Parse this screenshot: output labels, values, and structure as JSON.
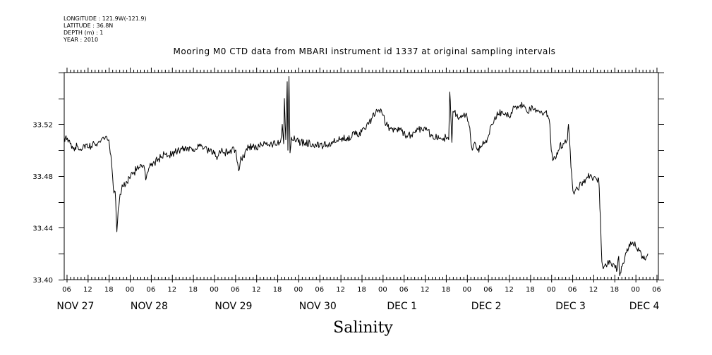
{
  "header": {
    "lines": [
      "LONGITUDE : 121.9W(-121.9)",
      "LATITUDE : 36.8N",
      "DEPTH (m) : 1",
      "YEAR : 2010"
    ]
  },
  "chart_data": {
    "type": "line",
    "title": "Mooring M0 CTD data from MBARI instrument id 1337 at original sampling intervals",
    "xlabel": "Salinity",
    "ylabel": "",
    "x_unit": "hours since Nov 27 00:00 (2010)",
    "xlim": [
      5.3,
      174.5
    ],
    "ylim": [
      33.4,
      33.56
    ],
    "yticks": [
      33.4,
      33.44,
      33.48,
      33.52
    ],
    "ytick_labels": [
      "33.40",
      "33.44",
      "33.48",
      "33.52"
    ],
    "hour_ticks": [
      {
        "h": 6,
        "label": "06"
      },
      {
        "h": 12,
        "label": "12"
      },
      {
        "h": 18,
        "label": "18"
      },
      {
        "h": 24,
        "label": "00"
      },
      {
        "h": 30,
        "label": "06"
      },
      {
        "h": 36,
        "label": "12"
      },
      {
        "h": 42,
        "label": "18"
      },
      {
        "h": 48,
        "label": "00"
      },
      {
        "h": 54,
        "label": "06"
      },
      {
        "h": 60,
        "label": "12"
      },
      {
        "h": 66,
        "label": "18"
      },
      {
        "h": 72,
        "label": "00"
      },
      {
        "h": 78,
        "label": "06"
      },
      {
        "h": 84,
        "label": "12"
      },
      {
        "h": 90,
        "label": "18"
      },
      {
        "h": 96,
        "label": "00"
      },
      {
        "h": 102,
        "label": "06"
      },
      {
        "h": 108,
        "label": "12"
      },
      {
        "h": 114,
        "label": "18"
      },
      {
        "h": 120,
        "label": "00"
      },
      {
        "h": 126,
        "label": "06"
      },
      {
        "h": 132,
        "label": "12"
      },
      {
        "h": 138,
        "label": "18"
      },
      {
        "h": 144,
        "label": "00"
      },
      {
        "h": 150,
        "label": "06"
      },
      {
        "h": 156,
        "label": "12"
      },
      {
        "h": 162,
        "label": "18"
      },
      {
        "h": 168,
        "label": "00"
      },
      {
        "h": 174,
        "label": "06"
      }
    ],
    "day_labels": [
      {
        "h": 8.5,
        "label": "NOV 27"
      },
      {
        "h": 29.5,
        "label": "NOV 28"
      },
      {
        "h": 53.5,
        "label": "NOV 29"
      },
      {
        "h": 77.5,
        "label": "NOV 30"
      },
      {
        "h": 101.5,
        "label": "DEC  1"
      },
      {
        "h": 125.5,
        "label": "DEC  2"
      },
      {
        "h": 149.5,
        "label": "DEC  3"
      },
      {
        "h": 170.5,
        "label": "DEC  4"
      }
    ],
    "series": [
      {
        "points": [
          [
            5.3,
            33.51
          ],
          [
            6.0,
            33.508
          ],
          [
            7.0,
            33.505
          ],
          [
            8.0,
            33.502
          ],
          [
            9.0,
            33.503
          ],
          [
            10.0,
            33.501
          ],
          [
            11.0,
            33.504
          ],
          [
            12.0,
            33.502
          ],
          [
            13.0,
            33.503
          ],
          [
            14.0,
            33.505
          ],
          [
            15.0,
            33.506
          ],
          [
            16.0,
            33.509
          ],
          [
            17.0,
            33.51
          ],
          [
            18.0,
            33.508
          ],
          [
            18.6,
            33.496
          ],
          [
            19.3,
            33.47
          ],
          [
            19.8,
            33.468
          ],
          [
            20.3,
            33.437
          ],
          [
            20.7,
            33.455
          ],
          [
            21.2,
            33.466
          ],
          [
            22.0,
            33.472
          ],
          [
            23.0,
            33.476
          ],
          [
            24.0,
            33.478
          ],
          [
            25.0,
            33.482
          ],
          [
            26.0,
            33.486
          ],
          [
            27.0,
            33.489
          ],
          [
            28.0,
            33.488
          ],
          [
            28.5,
            33.477
          ],
          [
            29.0,
            33.483
          ],
          [
            30.0,
            33.488
          ],
          [
            31.0,
            33.49
          ],
          [
            32.0,
            33.493
          ],
          [
            33.0,
            33.495
          ],
          [
            34.0,
            33.497
          ],
          [
            36.0,
            33.497
          ],
          [
            38.0,
            33.5
          ],
          [
            40.0,
            33.502
          ],
          [
            42.0,
            33.501
          ],
          [
            44.0,
            33.503
          ],
          [
            46.0,
            33.5
          ],
          [
            48.0,
            33.497
          ],
          [
            49.0,
            33.495
          ],
          [
            50.0,
            33.499
          ],
          [
            51.0,
            33.498
          ],
          [
            52.0,
            33.499
          ],
          [
            53.0,
            33.5
          ],
          [
            54.0,
            33.5
          ],
          [
            54.7,
            33.49
          ],
          [
            55.0,
            33.484
          ],
          [
            55.6,
            33.495
          ],
          [
            56.0,
            33.492
          ],
          [
            57.0,
            33.5
          ],
          [
            58.0,
            33.503
          ],
          [
            60.0,
            33.502
          ],
          [
            62.0,
            33.504
          ],
          [
            64.0,
            33.505
          ],
          [
            66.0,
            33.505
          ],
          [
            67.0,
            33.508
          ],
          [
            67.4,
            33.52
          ],
          [
            67.8,
            33.505
          ],
          [
            68.0,
            33.54
          ],
          [
            68.4,
            33.508
          ],
          [
            68.8,
            33.553
          ],
          [
            69.0,
            33.5
          ],
          [
            69.3,
            33.557
          ],
          [
            69.6,
            33.498
          ],
          [
            70.0,
            33.51
          ],
          [
            71.0,
            33.508
          ],
          [
            72.0,
            33.506
          ],
          [
            74.0,
            33.506
          ],
          [
            76.0,
            33.505
          ],
          [
            78.0,
            33.503
          ],
          [
            80.0,
            33.504
          ],
          [
            82.0,
            33.506
          ],
          [
            84.0,
            33.508
          ],
          [
            86.0,
            33.51
          ],
          [
            88.0,
            33.512
          ],
          [
            90.0,
            33.514
          ],
          [
            92.0,
            33.52
          ],
          [
            93.0,
            33.525
          ],
          [
            94.0,
            33.529
          ],
          [
            95.0,
            33.531
          ],
          [
            96.0,
            33.527
          ],
          [
            97.0,
            33.52
          ],
          [
            98.0,
            33.517
          ],
          [
            100.0,
            33.516
          ],
          [
            102.0,
            33.514
          ],
          [
            103.0,
            33.51
          ],
          [
            104.0,
            33.512
          ],
          [
            106.0,
            33.516
          ],
          [
            108.0,
            33.518
          ],
          [
            110.0,
            33.511
          ],
          [
            112.0,
            33.509
          ],
          [
            113.0,
            33.509
          ],
          [
            114.0,
            33.51
          ],
          [
            114.8,
            33.508
          ],
          [
            115.1,
            33.545
          ],
          [
            115.4,
            33.526
          ],
          [
            115.7,
            33.506
          ],
          [
            116.0,
            33.53
          ],
          [
            117.0,
            33.527
          ],
          [
            118.0,
            33.525
          ],
          [
            119.0,
            33.527
          ],
          [
            120.0,
            33.526
          ],
          [
            120.6,
            33.519
          ],
          [
            121.0,
            33.51
          ],
          [
            121.5,
            33.5
          ],
          [
            122.0,
            33.505
          ],
          [
            123.0,
            33.5
          ],
          [
            124.0,
            33.503
          ],
          [
            125.0,
            33.506
          ],
          [
            126.0,
            33.51
          ],
          [
            127.0,
            33.52
          ],
          [
            128.0,
            33.526
          ],
          [
            129.0,
            33.528
          ],
          [
            130.0,
            33.53
          ],
          [
            131.0,
            33.529
          ],
          [
            132.0,
            33.526
          ],
          [
            133.0,
            33.531
          ],
          [
            134.0,
            33.533
          ],
          [
            135.0,
            33.534
          ],
          [
            136.0,
            33.534
          ],
          [
            137.0,
            33.53
          ],
          [
            138.0,
            33.532
          ],
          [
            139.0,
            33.531
          ],
          [
            140.0,
            33.53
          ],
          [
            141.0,
            33.53
          ],
          [
            142.0,
            33.529
          ],
          [
            143.0,
            33.527
          ],
          [
            143.6,
            33.52
          ],
          [
            144.0,
            33.5
          ],
          [
            144.4,
            33.492
          ],
          [
            145.0,
            33.495
          ],
          [
            146.0,
            33.5
          ],
          [
            146.5,
            33.505
          ],
          [
            147.0,
            33.502
          ],
          [
            148.0,
            33.508
          ],
          [
            148.6,
            33.508
          ],
          [
            148.9,
            33.52
          ],
          [
            149.2,
            33.508
          ],
          [
            149.6,
            33.487
          ],
          [
            150.0,
            33.474
          ],
          [
            150.5,
            33.466
          ],
          [
            151.0,
            33.47
          ],
          [
            152.0,
            33.472
          ],
          [
            153.0,
            33.476
          ],
          [
            154.0,
            33.478
          ],
          [
            155.0,
            33.48
          ],
          [
            156.0,
            33.478
          ],
          [
            157.0,
            33.477
          ],
          [
            157.5,
            33.478
          ],
          [
            158.0,
            33.448
          ],
          [
            158.4,
            33.414
          ],
          [
            159.0,
            33.41
          ],
          [
            160.0,
            33.413
          ],
          [
            161.0,
            33.413
          ],
          [
            162.0,
            33.411
          ],
          [
            162.8,
            33.408
          ],
          [
            163.2,
            33.418
          ],
          [
            163.5,
            33.403
          ],
          [
            164.0,
            33.41
          ],
          [
            165.0,
            33.418
          ],
          [
            166.0,
            33.424
          ],
          [
            167.0,
            33.428
          ],
          [
            168.0,
            33.426
          ],
          [
            169.0,
            33.422
          ],
          [
            170.0,
            33.418
          ],
          [
            171.0,
            33.417
          ],
          [
            171.5,
            33.42
          ]
        ]
      }
    ]
  }
}
